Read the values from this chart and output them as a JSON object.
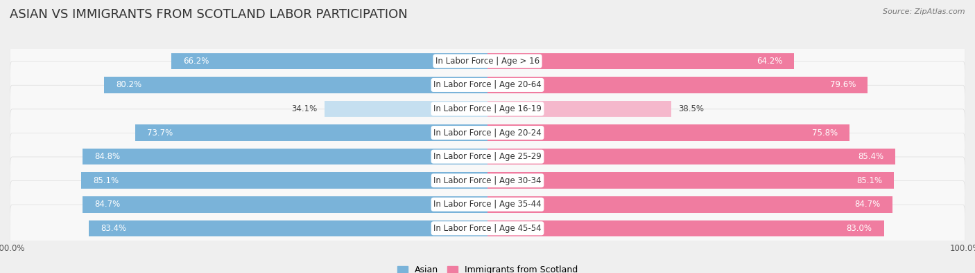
{
  "title": "Asian vs Immigrants from Scotland Labor Participation",
  "source": "Source: ZipAtlas.com",
  "categories": [
    "In Labor Force | Age > 16",
    "In Labor Force | Age 20-64",
    "In Labor Force | Age 16-19",
    "In Labor Force | Age 20-24",
    "In Labor Force | Age 25-29",
    "In Labor Force | Age 30-34",
    "In Labor Force | Age 35-44",
    "In Labor Force | Age 45-54"
  ],
  "asian_values": [
    66.2,
    80.2,
    34.1,
    73.7,
    84.8,
    85.1,
    84.7,
    83.4
  ],
  "scotland_values": [
    64.2,
    79.6,
    38.5,
    75.8,
    85.4,
    85.1,
    84.7,
    83.0
  ],
  "asian_color": "#7ab3d9",
  "asian_color_light": "#c5dff0",
  "scotland_color": "#f07ca0",
  "scotland_color_light": "#f5b8cc",
  "max_val": 100.0,
  "bar_height": 0.68,
  "background_color": "#efefef",
  "row_bg_color": "#f7f7f7",
  "row_bg_dark": "#e8e8e8",
  "title_fontsize": 13,
  "label_fontsize": 8.5,
  "value_fontsize": 8.5,
  "source_fontsize": 8,
  "legend_fontsize": 9
}
